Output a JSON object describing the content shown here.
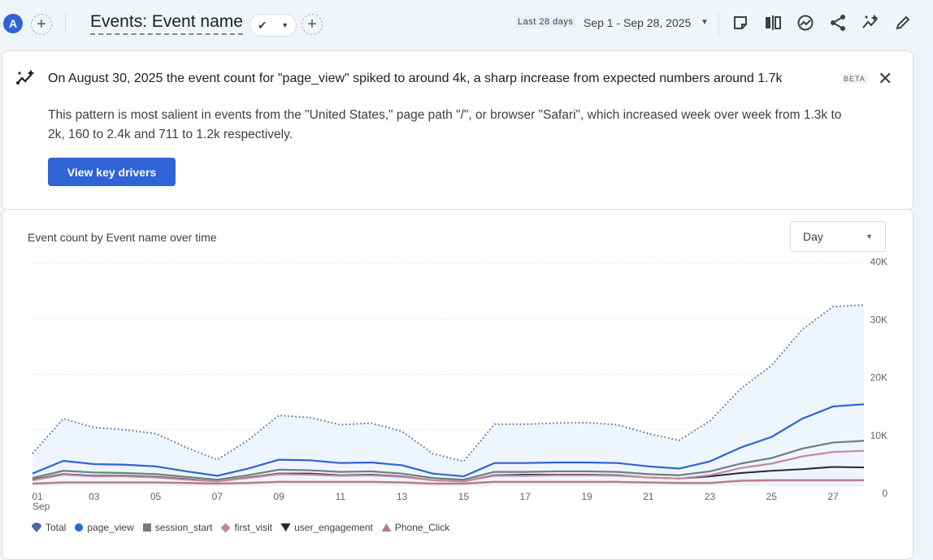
{
  "header": {
    "avatar_letter": "A",
    "title": "Events: Event name",
    "date_preset": "Last 28 days",
    "date_range": "Sep 1 - Sep 28, 2025",
    "toolbar_icons": [
      "note-icon",
      "compare-icon",
      "insights-icon",
      "share-icon",
      "anomaly-icon",
      "edit-icon"
    ]
  },
  "insight": {
    "headline": "On August 30, 2025 the event count for \"page_view\" spiked to around 4k, a sharp increase from expected numbers around 1.7k",
    "badge": "BETA",
    "body": "This pattern is most salient in events from the \"United States,\" page path \"/\", or browser \"Safari\", which increased week over week from 1.3k to 2k, 160 to 2.4k and 711 to 1.2k respectively.",
    "button_label": "View key drivers"
  },
  "chart_card": {
    "title": "Event count by Event name over time",
    "granularity": "Day"
  },
  "colors": {
    "accent": "#2f63d6",
    "Total": "#4a6aa8",
    "page_view": "#2f63d6",
    "session_start": "#6f7f7b",
    "first_visit": "#c48a9b",
    "user_engagement": "#2a2440",
    "Phone_Click": "#b9798c"
  },
  "chart_data": {
    "type": "line",
    "title": "Event count by Event name over time",
    "xlabel": "",
    "ylabel": "",
    "x": [
      "01",
      "02",
      "03",
      "04",
      "05",
      "06",
      "07",
      "08",
      "09",
      "10",
      "11",
      "12",
      "13",
      "14",
      "15",
      "16",
      "17",
      "18",
      "19",
      "20",
      "21",
      "22",
      "23",
      "24",
      "25",
      "26",
      "27",
      "28"
    ],
    "x_tick_labels": [
      "01",
      "03",
      "05",
      "07",
      "09",
      "11",
      "13",
      "15",
      "17",
      "19",
      "21",
      "23",
      "25",
      "27"
    ],
    "x_month_label": "Sep",
    "y_ticks": [
      "0",
      "10K",
      "20K",
      "30K",
      "40K"
    ],
    "ylim": [
      0,
      40000
    ],
    "grid": true,
    "legend_position": "bottom-left",
    "series": [
      {
        "name": "Total",
        "values": [
          5700,
          12000,
          10400,
          10000,
          9300,
          6800,
          4600,
          8100,
          12600,
          12200,
          10900,
          11200,
          9700,
          5700,
          4300,
          11000,
          11000,
          11200,
          11300,
          10900,
          9300,
          8100,
          11600,
          17400,
          21600,
          28100,
          32200,
          32500
        ]
      },
      {
        "name": "page_view",
        "values": [
          2100,
          4400,
          3800,
          3700,
          3400,
          2500,
          1700,
          3000,
          4600,
          4500,
          4000,
          4100,
          3600,
          2100,
          1600,
          4000,
          4000,
          4100,
          4100,
          4000,
          3400,
          3000,
          4300,
          6800,
          8700,
          12000,
          14200,
          14600
        ]
      },
      {
        "name": "session_start",
        "values": [
          1300,
          2600,
          2300,
          2200,
          2000,
          1500,
          1000,
          1800,
          2800,
          2700,
          2400,
          2500,
          2100,
          1300,
          1000,
          2400,
          2400,
          2500,
          2500,
          2400,
          2000,
          1800,
          2500,
          3900,
          4900,
          6600,
          7700,
          8000
        ]
      },
      {
        "name": "first_visit",
        "values": [
          900,
          1900,
          1600,
          1600,
          1400,
          1000,
          700,
          1300,
          2000,
          1900,
          1700,
          1800,
          1500,
          900,
          700,
          1700,
          1700,
          1800,
          1800,
          1700,
          1400,
          1200,
          1800,
          3100,
          3900,
          5200,
          6000,
          6200
        ]
      },
      {
        "name": "user_engagement",
        "values": [
          1000,
          2000,
          1700,
          1700,
          1500,
          1100,
          700,
          1400,
          2100,
          2100,
          1800,
          1900,
          1600,
          900,
          700,
          1800,
          1900,
          1900,
          1900,
          1800,
          1400,
          1200,
          1600,
          2200,
          2600,
          2900,
          3300,
          3200
        ]
      },
      {
        "name": "Phone_Click",
        "values": [
          300,
          500,
          500,
          500,
          500,
          400,
          300,
          400,
          600,
          600,
          600,
          600,
          500,
          300,
          300,
          600,
          600,
          600,
          600,
          600,
          500,
          400,
          400,
          800,
          900,
          900,
          900,
          900
        ]
      }
    ]
  }
}
